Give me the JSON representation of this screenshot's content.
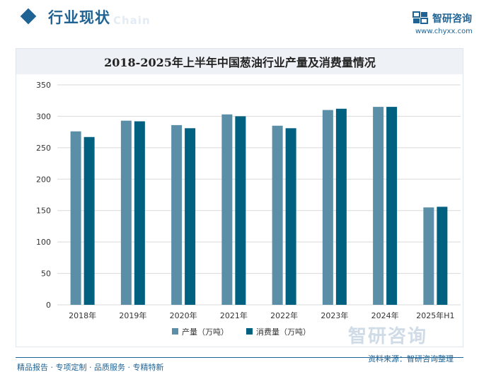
{
  "header": {
    "section_title": "行业现状",
    "title_ghost": "Chain",
    "brand_name": "智研咨询",
    "brand_url": "www.chyxx.com"
  },
  "chart_data": {
    "type": "bar",
    "title": "2018-2025年上半年中国葱油行业产量及消费量情况",
    "categories": [
      "2018年",
      "2019年",
      "2020年",
      "2021年",
      "2022年",
      "2023年",
      "2024年",
      "2025年H1"
    ],
    "series": [
      {
        "name": "产量（万吨）",
        "color": "#5b8fa8",
        "values": [
          276,
          293,
          286,
          303,
          285,
          310,
          315,
          155
        ]
      },
      {
        "name": "消费量（万吨）",
        "color": "#006080",
        "values": [
          267,
          292,
          281,
          300,
          281,
          312,
          315,
          156
        ]
      }
    ],
    "ylim": [
      0,
      350
    ],
    "yticks": [
      0,
      50,
      100,
      150,
      200,
      250,
      300,
      350
    ],
    "xlabel": "",
    "ylabel": "",
    "grid": true,
    "legend_position": "bottom"
  },
  "footer": {
    "tagline": "精品报告 · 专项定制 · 品质服务 · 专精特新",
    "source": "资料来源：智研咨询整理",
    "big_brand": "智研咨询"
  }
}
